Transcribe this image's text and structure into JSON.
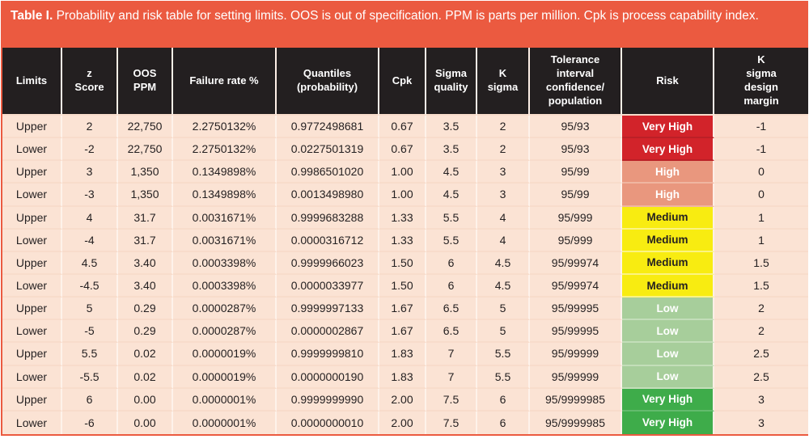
{
  "caption": {
    "label": "Table I.",
    "text": " Probability and risk table for setting limits. OOS is out of specification. PPM is parts per million. Cpk is process capability index."
  },
  "colors": {
    "caption_bg": "#EB5A40",
    "header_bg": "#231F20",
    "row_bg": "#FBE3D4",
    "risk_very_high_red": "#D2232A",
    "risk_high": "#E9977E",
    "risk_medium": "#F8EC11",
    "risk_low": "#A7CE9B",
    "risk_very_high_green": "#3EAC4A"
  },
  "table": {
    "columns": [
      "Limits",
      "z\nScore",
      "OOS\nPPM",
      "Failure rate %",
      "Quantiles\n(probability)",
      "Cpk",
      "Sigma\nquality",
      "K\nsigma",
      "Tolerance\ninterval\nconfidence/\npopulation",
      "Risk",
      "K\nsigma\ndesign\nmargin"
    ],
    "rows": [
      {
        "limits": "Upper",
        "z_score": "2",
        "oos_ppm": "22,750",
        "failure_rate": "2.2750132%",
        "quantile": "0.9772498681",
        "cpk": "0.67",
        "sigma_quality": "3.5",
        "k_sigma": "2",
        "tolerance": "95/93",
        "risk": "Very High",
        "risk_level": "vh-red",
        "k_margin": "-1"
      },
      {
        "limits": "Lower",
        "z_score": "-2",
        "oos_ppm": "22,750",
        "failure_rate": "2.2750132%",
        "quantile": "0.0227501319",
        "cpk": "0.67",
        "sigma_quality": "3.5",
        "k_sigma": "2",
        "tolerance": "95/93",
        "risk": "Very High",
        "risk_level": "vh-red",
        "k_margin": "-1"
      },
      {
        "limits": "Upper",
        "z_score": "3",
        "oos_ppm": "1,350",
        "failure_rate": "0.1349898%",
        "quantile": "0.9986501020",
        "cpk": "1.00",
        "sigma_quality": "4.5",
        "k_sigma": "3",
        "tolerance": "95/99",
        "risk": "High",
        "risk_level": "high",
        "k_margin": "0"
      },
      {
        "limits": "Lower",
        "z_score": "-3",
        "oos_ppm": "1,350",
        "failure_rate": "0.1349898%",
        "quantile": "0.0013498980",
        "cpk": "1.00",
        "sigma_quality": "4.5",
        "k_sigma": "3",
        "tolerance": "95/99",
        "risk": "High",
        "risk_level": "high",
        "k_margin": "0"
      },
      {
        "limits": "Upper",
        "z_score": "4",
        "oos_ppm": "31.7",
        "failure_rate": "0.0031671%",
        "quantile": "0.9999683288",
        "cpk": "1.33",
        "sigma_quality": "5.5",
        "k_sigma": "4",
        "tolerance": "95/999",
        "risk": "Medium",
        "risk_level": "medium",
        "k_margin": "1"
      },
      {
        "limits": "Lower",
        "z_score": "-4",
        "oos_ppm": "31.7",
        "failure_rate": "0.0031671%",
        "quantile": "0.0000316712",
        "cpk": "1.33",
        "sigma_quality": "5.5",
        "k_sigma": "4",
        "tolerance": "95/999",
        "risk": "Medium",
        "risk_level": "medium",
        "k_margin": "1"
      },
      {
        "limits": "Upper",
        "z_score": "4.5",
        "oos_ppm": "3.40",
        "failure_rate": "0.0003398%",
        "quantile": "0.9999966023",
        "cpk": "1.50",
        "sigma_quality": "6",
        "k_sigma": "4.5",
        "tolerance": "95/99974",
        "risk": "Medium",
        "risk_level": "medium",
        "k_margin": "1.5"
      },
      {
        "limits": "Lower",
        "z_score": "-4.5",
        "oos_ppm": "3.40",
        "failure_rate": "0.0003398%",
        "quantile": "0.0000033977",
        "cpk": "1.50",
        "sigma_quality": "6",
        "k_sigma": "4.5",
        "tolerance": "95/99974",
        "risk": "Medium",
        "risk_level": "medium",
        "k_margin": "1.5"
      },
      {
        "limits": "Upper",
        "z_score": "5",
        "oos_ppm": "0.29",
        "failure_rate": "0.0000287%",
        "quantile": "0.9999997133",
        "cpk": "1.67",
        "sigma_quality": "6.5",
        "k_sigma": "5",
        "tolerance": "95/99995",
        "risk": "Low",
        "risk_level": "low",
        "k_margin": "2"
      },
      {
        "limits": "Lower",
        "z_score": "-5",
        "oos_ppm": "0.29",
        "failure_rate": "0.0000287%",
        "quantile": "0.0000002867",
        "cpk": "1.67",
        "sigma_quality": "6.5",
        "k_sigma": "5",
        "tolerance": "95/99995",
        "risk": "Low",
        "risk_level": "low",
        "k_margin": "2"
      },
      {
        "limits": "Upper",
        "z_score": "5.5",
        "oos_ppm": "0.02",
        "failure_rate": "0.0000019%",
        "quantile": "0.9999999810",
        "cpk": "1.83",
        "sigma_quality": "7",
        "k_sigma": "5.5",
        "tolerance": "95/99999",
        "risk": "Low",
        "risk_level": "low",
        "k_margin": "2.5"
      },
      {
        "limits": "Lower",
        "z_score": "-5.5",
        "oos_ppm": "0.02",
        "failure_rate": "0.0000019%",
        "quantile": "0.0000000190",
        "cpk": "1.83",
        "sigma_quality": "7",
        "k_sigma": "5.5",
        "tolerance": "95/99999",
        "risk": "Low",
        "risk_level": "low",
        "k_margin": "2.5"
      },
      {
        "limits": "Upper",
        "z_score": "6",
        "oos_ppm": "0.00",
        "failure_rate": "0.0000001%",
        "quantile": "0.9999999990",
        "cpk": "2.00",
        "sigma_quality": "7.5",
        "k_sigma": "6",
        "tolerance": "95/9999985",
        "risk": "Very High",
        "risk_level": "vh-green",
        "k_margin": "3"
      },
      {
        "limits": "Lower",
        "z_score": "-6",
        "oos_ppm": "0.00",
        "failure_rate": "0.0000001%",
        "quantile": "0.0000000010",
        "cpk": "2.00",
        "sigma_quality": "7.5",
        "k_sigma": "6",
        "tolerance": "95/9999985",
        "risk": "Very High",
        "risk_level": "vh-green",
        "k_margin": "3"
      }
    ]
  }
}
